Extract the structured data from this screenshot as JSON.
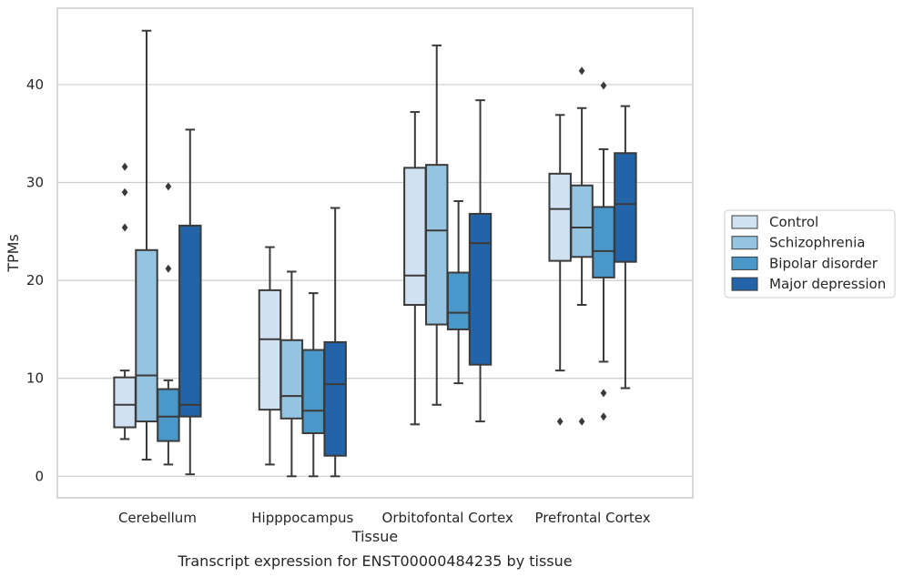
{
  "chart_data": {
    "type": "box",
    "caption": "Transcript expression for ENST00000484235 by tissue",
    "xlabel": "Tissue",
    "ylabel": "TPMs",
    "ylim": [
      -2.2,
      47.8
    ],
    "yticks": [
      0,
      10,
      20,
      30,
      40
    ],
    "grid": "horizontal",
    "legend_position": "right",
    "categories": [
      "Cerebellum",
      "Hipppocampus",
      "Orbitofontal Cortex",
      "Prefrontal Cortex"
    ],
    "series": [
      {
        "name": "Control",
        "color": "#d0e1f2",
        "boxes": [
          {
            "whislo": 3.8,
            "q1": 5.0,
            "med": 7.3,
            "q3": 10.1,
            "whishi": 10.8,
            "fliers": [
              25.4,
              29.0,
              31.6
            ]
          },
          {
            "whislo": 1.2,
            "q1": 6.8,
            "med": 14.0,
            "q3": 19.0,
            "whishi": 23.4,
            "fliers": []
          },
          {
            "whislo": 5.3,
            "q1": 17.5,
            "med": 20.5,
            "q3": 31.5,
            "whishi": 37.2,
            "fliers": []
          },
          {
            "whislo": 10.8,
            "q1": 22.0,
            "med": 27.3,
            "q3": 30.9,
            "whishi": 36.9,
            "fliers": [
              5.6
            ]
          }
        ]
      },
      {
        "name": "Schizophrenia",
        "color": "#94c4df",
        "boxes": [
          {
            "whislo": 1.7,
            "q1": 5.6,
            "med": 10.3,
            "q3": 23.1,
            "whishi": 45.5,
            "fliers": []
          },
          {
            "whislo": 0.0,
            "q1": 5.9,
            "med": 8.2,
            "q3": 13.9,
            "whishi": 20.9,
            "fliers": []
          },
          {
            "whislo": 7.3,
            "q1": 15.5,
            "med": 25.1,
            "q3": 31.8,
            "whishi": 44.0,
            "fliers": []
          },
          {
            "whislo": 17.5,
            "q1": 22.4,
            "med": 25.4,
            "q3": 29.7,
            "whishi": 37.6,
            "fliers": [
              5.6,
              41.4
            ]
          }
        ]
      },
      {
        "name": "Bipolar disorder",
        "color": "#4a98c9",
        "boxes": [
          {
            "whislo": 1.2,
            "q1": 3.6,
            "med": 6.1,
            "q3": 8.9,
            "whishi": 9.8,
            "fliers": [
              21.2,
              29.6
            ]
          },
          {
            "whislo": 0.0,
            "q1": 4.4,
            "med": 6.7,
            "q3": 12.9,
            "whishi": 18.7,
            "fliers": []
          },
          {
            "whislo": 9.5,
            "q1": 15.0,
            "med": 16.7,
            "q3": 20.8,
            "whishi": 28.1,
            "fliers": []
          },
          {
            "whislo": 11.7,
            "q1": 20.3,
            "med": 23.0,
            "q3": 27.5,
            "whishi": 33.4,
            "fliers": [
              6.1,
              8.5,
              39.9
            ]
          }
        ]
      },
      {
        "name": "Major depression",
        "color": "#2264a7",
        "boxes": [
          {
            "whislo": 0.2,
            "q1": 6.1,
            "med": 7.3,
            "q3": 25.6,
            "whishi": 35.4,
            "fliers": []
          },
          {
            "whislo": 0.0,
            "q1": 2.1,
            "med": 9.4,
            "q3": 13.7,
            "whishi": 27.4,
            "fliers": []
          },
          {
            "whislo": 5.6,
            "q1": 11.4,
            "med": 23.8,
            "q3": 26.8,
            "whishi": 38.4,
            "fliers": []
          },
          {
            "whislo": 9.0,
            "q1": 21.9,
            "med": 27.8,
            "q3": 33.0,
            "whishi": 37.8,
            "fliers": []
          }
        ]
      }
    ]
  }
}
